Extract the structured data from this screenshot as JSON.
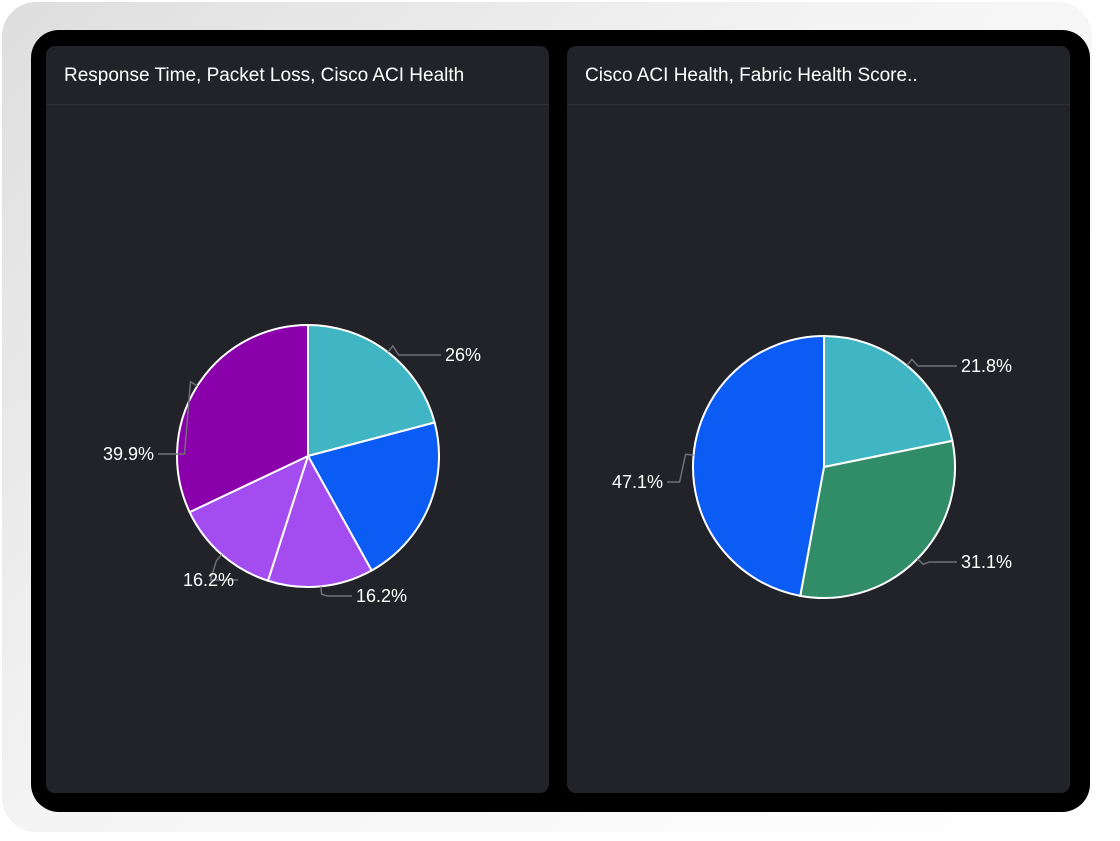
{
  "panels": [
    {
      "title": "Response Time, Packet Loss, Cisco ACI Health",
      "chart_data": {
        "type": "pie",
        "slices": [
          {
            "label": "26%",
            "value": 26.0,
            "color": "#40b5c4"
          },
          {
            "label": "",
            "value": 26.2,
            "color": "#0b5cf5"
          },
          {
            "label": "16.2%",
            "value": 16.2,
            "color": "#a34cf0"
          },
          {
            "label": "16.2%",
            "value": 16.2,
            "color": "#a34cf0"
          },
          {
            "label": "39.9%",
            "value": 39.9,
            "color": "#8a00aa"
          }
        ]
      }
    },
    {
      "title": "Cisco ACI Health, Fabric Health Score..",
      "chart_data": {
        "type": "pie",
        "slices": [
          {
            "label": "21.8%",
            "value": 21.8,
            "color": "#40b5c4"
          },
          {
            "label": "31.1%",
            "value": 31.1,
            "color": "#318d68"
          },
          {
            "label": "47.1%",
            "value": 47.1,
            "color": "#0b5cf5"
          }
        ]
      }
    }
  ]
}
